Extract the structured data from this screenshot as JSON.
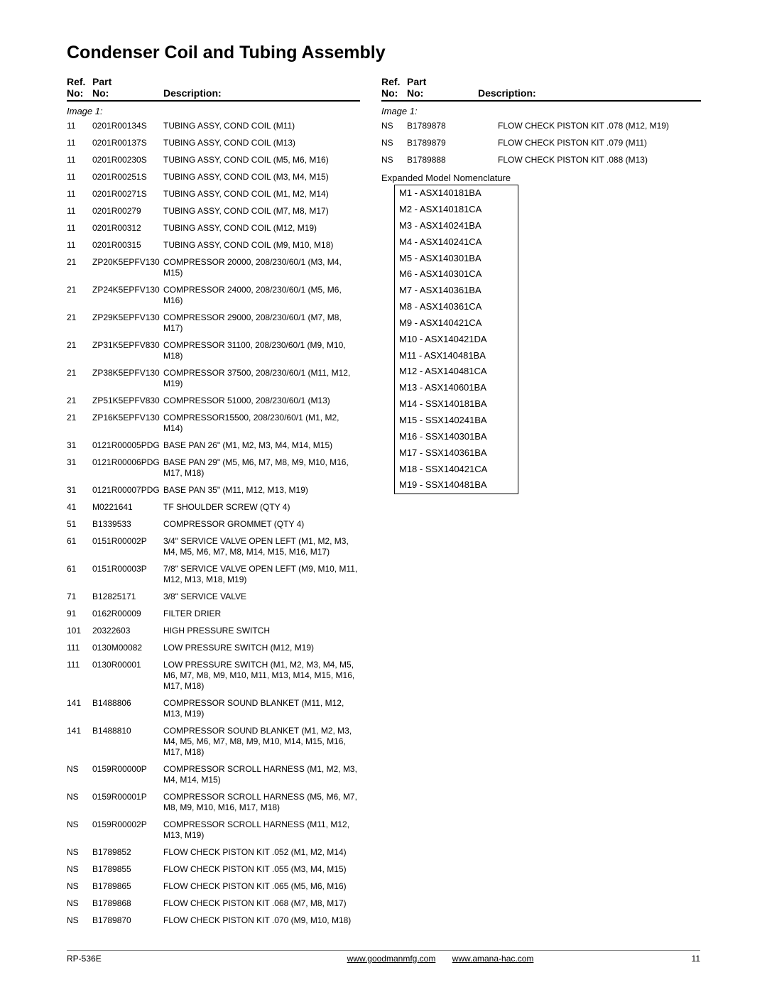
{
  "title": "Condenser Coil and Tubing Assembly",
  "header": {
    "ref_line1": "Ref.",
    "ref_line2": "No:",
    "part_line1": "Part",
    "part_line2": "No:",
    "desc": "Description:"
  },
  "image_label": "Image 1:",
  "left_rows": [
    {
      "ref": "11",
      "part": "0201R00134S",
      "desc": "TUBING ASSY, COND COIL (M11)"
    },
    {
      "ref": "11",
      "part": "0201R00137S",
      "desc": "TUBING ASSY, COND COIL (M13)"
    },
    {
      "ref": "11",
      "part": "0201R00230S",
      "desc": "TUBING ASSY, COND COIL (M5, M6, M16)"
    },
    {
      "ref": "11",
      "part": "0201R00251S",
      "desc": "TUBING ASSY, COND COIL (M3, M4, M15)"
    },
    {
      "ref": "11",
      "part": "0201R00271S",
      "desc": "TUBING ASSY, COND COIL (M1, M2, M14)"
    },
    {
      "ref": "11",
      "part": "0201R00279",
      "desc": "TUBING ASSY, COND COIL (M7, M8, M17)"
    },
    {
      "ref": "11",
      "part": "0201R00312",
      "desc": "TUBING ASSY, COND COIL (M12, M19)"
    },
    {
      "ref": "11",
      "part": "0201R00315",
      "desc": "TUBING ASSY, COND COIL (M9, M10, M18)"
    },
    {
      "ref": "21",
      "part": "ZP20K5EPFV130",
      "desc": "COMPRESSOR 20000, 208/230/60/1 (M3, M4, M15)"
    },
    {
      "ref": "21",
      "part": "ZP24K5EPFV130",
      "desc": "COMPRESSOR 24000, 208/230/60/1 (M5, M6, M16)"
    },
    {
      "ref": "21",
      "part": "ZP29K5EPFV130",
      "desc": "COMPRESSOR 29000, 208/230/60/1 (M7, M8, M17)"
    },
    {
      "ref": "21",
      "part": "ZP31K5EPFV830",
      "desc": "COMPRESSOR 31100, 208/230/60/1 (M9, M10, M18)"
    },
    {
      "ref": "21",
      "part": "ZP38K5EPFV130",
      "desc": "COMPRESSOR 37500, 208/230/60/1 (M11, M12, M19)"
    },
    {
      "ref": "21",
      "part": "ZP51K5EPFV830",
      "desc": "COMPRESSOR 51000, 208/230/60/1 (M13)"
    },
    {
      "ref": "21",
      "part": "ZP16K5EPFV130",
      "desc": "COMPRESSOR15500, 208/230/60/1 (M1, M2, M14)"
    },
    {
      "ref": "31",
      "part": "0121R00005PDG",
      "desc": "BASE PAN 26\" (M1, M2, M3, M4, M14, M15)"
    },
    {
      "ref": "31",
      "part": "0121R00006PDG",
      "desc": "BASE PAN 29\" (M5, M6, M7, M8, M9, M10, M16, M17, M18)"
    },
    {
      "ref": "31",
      "part": "0121R00007PDG",
      "desc": "BASE PAN 35\" (M11, M12, M13, M19)"
    },
    {
      "ref": "41",
      "part": "M0221641",
      "desc": "TF SHOULDER SCREW (QTY 4)"
    },
    {
      "ref": "51",
      "part": "B1339533",
      "desc": "COMPRESSOR GROMMET (QTY 4)"
    },
    {
      "ref": "61",
      "part": "0151R00002P",
      "desc": "3/4\" SERVICE VALVE OPEN LEFT (M1, M2, M3, M4, M5, M6, M7, M8, M14, M15, M16, M17)"
    },
    {
      "ref": "61",
      "part": "0151R00003P",
      "desc": "7/8\" SERVICE VALVE OPEN LEFT (M9, M10, M11, M12, M13, M18, M19)"
    },
    {
      "ref": "71",
      "part": "B12825171",
      "desc": "3/8\" SERVICE VALVE"
    },
    {
      "ref": "91",
      "part": "0162R00009",
      "desc": "FILTER DRIER"
    },
    {
      "ref": "101",
      "part": "20322603",
      "desc": "HIGH PRESSURE SWITCH"
    },
    {
      "ref": "111",
      "part": "0130M00082",
      "desc": "LOW PRESSURE SWITCH (M12, M19)"
    },
    {
      "ref": "111",
      "part": "0130R00001",
      "desc": "LOW PRESSURE SWITCH (M1, M2, M3, M4, M5, M6, M7, M8, M9, M10, M11, M13, M14, M15, M16, M17, M18)"
    },
    {
      "ref": "141",
      "part": "B1488806",
      "desc": "COMPRESSOR SOUND BLANKET (M11, M12, M13, M19)"
    },
    {
      "ref": "141",
      "part": "B1488810",
      "desc": "COMPRESSOR SOUND BLANKET (M1, M2, M3, M4, M5, M6, M7, M8, M9, M10, M14, M15, M16, M17, M18)"
    },
    {
      "ref": "NS",
      "part": "0159R00000P",
      "desc": "COMPRESSOR SCROLL HARNESS (M1, M2, M3, M4, M14, M15)"
    },
    {
      "ref": "NS",
      "part": "0159R00001P",
      "desc": "COMPRESSOR SCROLL HARNESS (M5, M6, M7, M8, M9, M10, M16, M17, M18)"
    },
    {
      "ref": "NS",
      "part": "0159R00002P",
      "desc": "COMPRESSOR SCROLL HARNESS (M11, M12, M13, M19)"
    },
    {
      "ref": "NS",
      "part": "B1789852",
      "desc": "FLOW CHECK PISTON KIT .052 (M1, M2, M14)"
    },
    {
      "ref": "NS",
      "part": "B1789855",
      "desc": "FLOW CHECK PISTON KIT .055 (M3, M4, M15)"
    },
    {
      "ref": "NS",
      "part": "B1789865",
      "desc": "FLOW CHECK PISTON KIT .065 (M5, M6, M16)"
    },
    {
      "ref": "NS",
      "part": "B1789868",
      "desc": "FLOW CHECK PISTON KIT .068 (M7, M8, M17)"
    },
    {
      "ref": "NS",
      "part": "B1789870",
      "desc": "FLOW CHECK PISTON KIT .070 (M9, M10, M18)"
    }
  ],
  "right_rows": [
    {
      "ref": "NS",
      "part": "B1789878",
      "desc": "FLOW CHECK PISTON KIT .078 (M12, M19)"
    },
    {
      "ref": "NS",
      "part": "B1789879",
      "desc": "FLOW CHECK PISTON KIT .079 (M11)"
    },
    {
      "ref": "NS",
      "part": "B1789888",
      "desc": "FLOW CHECK PISTON KIT .088 (M13)"
    }
  ],
  "nomenclature_title": "Expanded Model Nomenclature",
  "nomenclature": [
    "M1 - ASX140181BA",
    "M2 - ASX140181CA",
    "M3 - ASX140241BA",
    "M4 - ASX140241CA",
    "M5 - ASX140301BA",
    "M6 - ASX140301CA",
    "M7 - ASX140361BA",
    "M8 - ASX140361CA",
    "M9 - ASX140421CA",
    "M10 - ASX140421DA",
    "M11 - ASX140481BA",
    "M12 - ASX140481CA",
    "M13 - ASX140601BA",
    "M14 - SSX140181BA",
    "M15 - SSX140241BA",
    "M16 - SSX140301BA",
    "M17 - SSX140361BA",
    "M18 - SSX140421CA",
    "M19 - SSX140481BA"
  ],
  "footer": {
    "left": "RP-536E",
    "url1": "www.goodmanmfg.com",
    "url2": "www.amana-hac.com",
    "page": "11"
  }
}
